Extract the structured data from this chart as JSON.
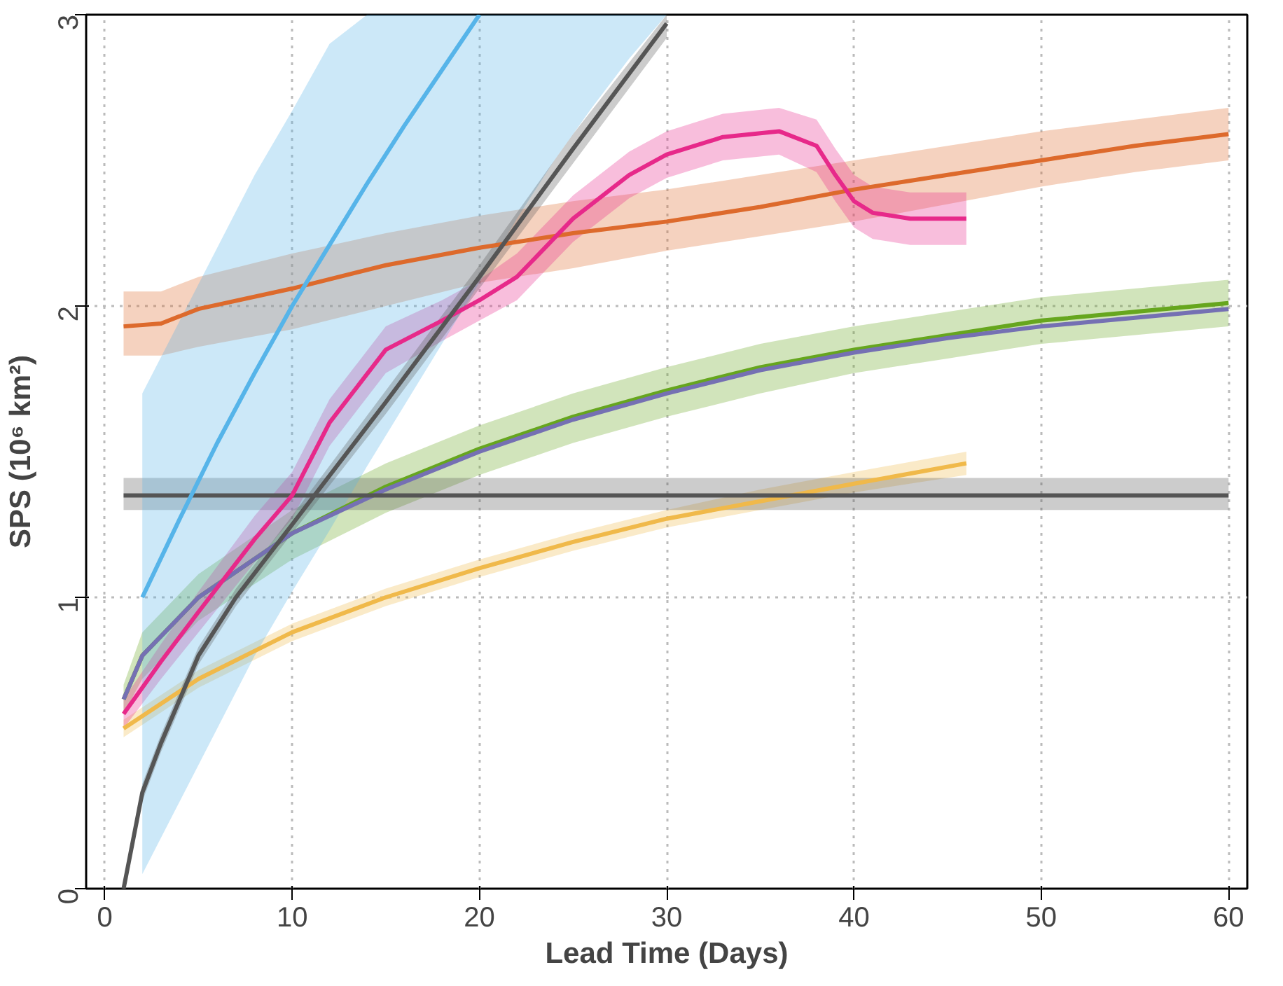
{
  "chart_data": {
    "type": "line",
    "xlabel": "Lead Time (Days)",
    "ylabel": "SPS (10⁶ km²)",
    "xlim": [
      -1,
      61
    ],
    "ylim": [
      0,
      3
    ],
    "xticks": [
      0,
      10,
      20,
      30,
      40,
      50,
      60
    ],
    "yticks": [
      0,
      1,
      2,
      3
    ],
    "grid": true,
    "marker": "none",
    "line_style": "solid",
    "series": [
      {
        "color": "#dd6a2c",
        "x": [
          1,
          3,
          5,
          10,
          15,
          20,
          25,
          30,
          35,
          40,
          45,
          50,
          55,
          60
        ],
        "values": [
          1.93,
          1.94,
          1.99,
          2.06,
          2.14,
          2.2,
          2.25,
          2.29,
          2.34,
          2.4,
          2.45,
          2.5,
          2.55,
          2.59
        ],
        "lower": [
          1.83,
          1.83,
          1.86,
          1.92,
          2.0,
          2.08,
          2.13,
          2.19,
          2.24,
          2.29,
          2.35,
          2.41,
          2.46,
          2.5
        ],
        "upper": [
          2.05,
          2.05,
          2.1,
          2.18,
          2.25,
          2.31,
          2.36,
          2.4,
          2.45,
          2.5,
          2.55,
          2.6,
          2.64,
          2.68
        ]
      },
      {
        "color": "#66a61e",
        "x": [
          1,
          2,
          5,
          10,
          15,
          20,
          25,
          30,
          35,
          40,
          45,
          50,
          55,
          60
        ],
        "values": [
          0.65,
          0.8,
          1.0,
          1.22,
          1.38,
          1.51,
          1.62,
          1.71,
          1.79,
          1.85,
          1.9,
          1.95,
          1.98,
          2.01
        ],
        "lower": [
          0.6,
          0.72,
          0.92,
          1.13,
          1.29,
          1.42,
          1.53,
          1.62,
          1.7,
          1.77,
          1.82,
          1.87,
          1.9,
          1.93
        ],
        "upper": [
          0.7,
          0.88,
          1.08,
          1.3,
          1.46,
          1.59,
          1.7,
          1.79,
          1.87,
          1.93,
          1.98,
          2.03,
          2.06,
          2.09
        ]
      },
      {
        "color": "#7570b3",
        "x": [
          1,
          2,
          5,
          10,
          15,
          20,
          25,
          30,
          35,
          40,
          45,
          50,
          55,
          60
        ],
        "values": [
          0.65,
          0.8,
          1.0,
          1.22,
          1.37,
          1.5,
          1.61,
          1.7,
          1.78,
          1.84,
          1.89,
          1.93,
          1.96,
          1.99
        ]
      },
      {
        "color": "#f0b94a",
        "x": [
          1,
          5,
          10,
          15,
          20,
          25,
          30,
          35,
          40,
          46
        ],
        "values": [
          0.55,
          0.72,
          0.88,
          1.0,
          1.1,
          1.19,
          1.27,
          1.33,
          1.39,
          1.46
        ],
        "lower": [
          0.52,
          0.69,
          0.85,
          0.97,
          1.07,
          1.16,
          1.24,
          1.3,
          1.36,
          1.42
        ],
        "upper": [
          0.58,
          0.75,
          0.91,
          1.03,
          1.13,
          1.22,
          1.3,
          1.37,
          1.43,
          1.5
        ]
      },
      {
        "color": "#555555",
        "x": [
          1,
          60
        ],
        "values": [
          1.35,
          1.35
        ],
        "lower": [
          1.3,
          1.3
        ],
        "upper": [
          1.41,
          1.41
        ]
      },
      {
        "color": "#e7298a",
        "x": [
          1,
          3,
          5,
          8,
          10,
          12,
          15,
          18,
          20,
          22,
          25,
          28,
          30,
          33,
          36,
          38,
          39,
          40,
          41,
          43,
          46
        ],
        "values": [
          0.6,
          0.78,
          0.95,
          1.2,
          1.35,
          1.6,
          1.85,
          1.95,
          2.02,
          2.1,
          2.3,
          2.45,
          2.52,
          2.58,
          2.6,
          2.55,
          2.45,
          2.36,
          2.32,
          2.3,
          2.3
        ],
        "lower": [
          0.55,
          0.72,
          0.88,
          1.12,
          1.27,
          1.52,
          1.77,
          1.88,
          1.95,
          2.02,
          2.22,
          2.37,
          2.44,
          2.5,
          2.52,
          2.46,
          2.36,
          2.27,
          2.23,
          2.21,
          2.21
        ],
        "upper": [
          0.65,
          0.84,
          1.02,
          1.28,
          1.43,
          1.68,
          1.93,
          2.02,
          2.09,
          2.18,
          2.38,
          2.53,
          2.6,
          2.66,
          2.68,
          2.64,
          2.54,
          2.45,
          2.41,
          2.39,
          2.39
        ]
      },
      {
        "color": "#56b4e9",
        "x": [
          2,
          4,
          6,
          8,
          10,
          12,
          14,
          16,
          18,
          20,
          22,
          24,
          26,
          28,
          30
        ],
        "values": [
          1.0,
          1.27,
          1.53,
          1.77,
          2.0,
          2.21,
          2.42,
          2.62,
          2.81,
          3.0,
          null,
          null,
          null,
          null,
          null
        ],
        "lower": [
          0.05,
          0.3,
          0.55,
          0.8,
          1.02,
          1.23,
          1.45,
          1.66,
          1.87,
          2.08,
          2.3,
          2.5,
          2.68,
          2.85,
          3.0
        ],
        "upper": [
          1.7,
          1.95,
          2.2,
          2.45,
          2.67,
          2.9,
          3.0,
          3.0,
          3.0,
          3.0,
          3.0,
          3.0,
          3.0,
          3.0,
          3.0
        ]
      },
      {
        "color": "#555555",
        "x": [
          1,
          2,
          3,
          5,
          7,
          10,
          15,
          20,
          25,
          30
        ],
        "values": [
          0.0,
          0.33,
          0.5,
          0.8,
          1.0,
          1.25,
          1.67,
          2.1,
          2.54,
          2.97
        ],
        "lower": [
          0.0,
          0.3,
          0.47,
          0.77,
          0.97,
          1.22,
          1.63,
          2.06,
          2.49,
          2.92
        ],
        "upper": [
          0.0,
          0.36,
          0.53,
          0.83,
          1.03,
          1.28,
          1.71,
          2.14,
          2.59,
          3.0
        ]
      }
    ]
  }
}
